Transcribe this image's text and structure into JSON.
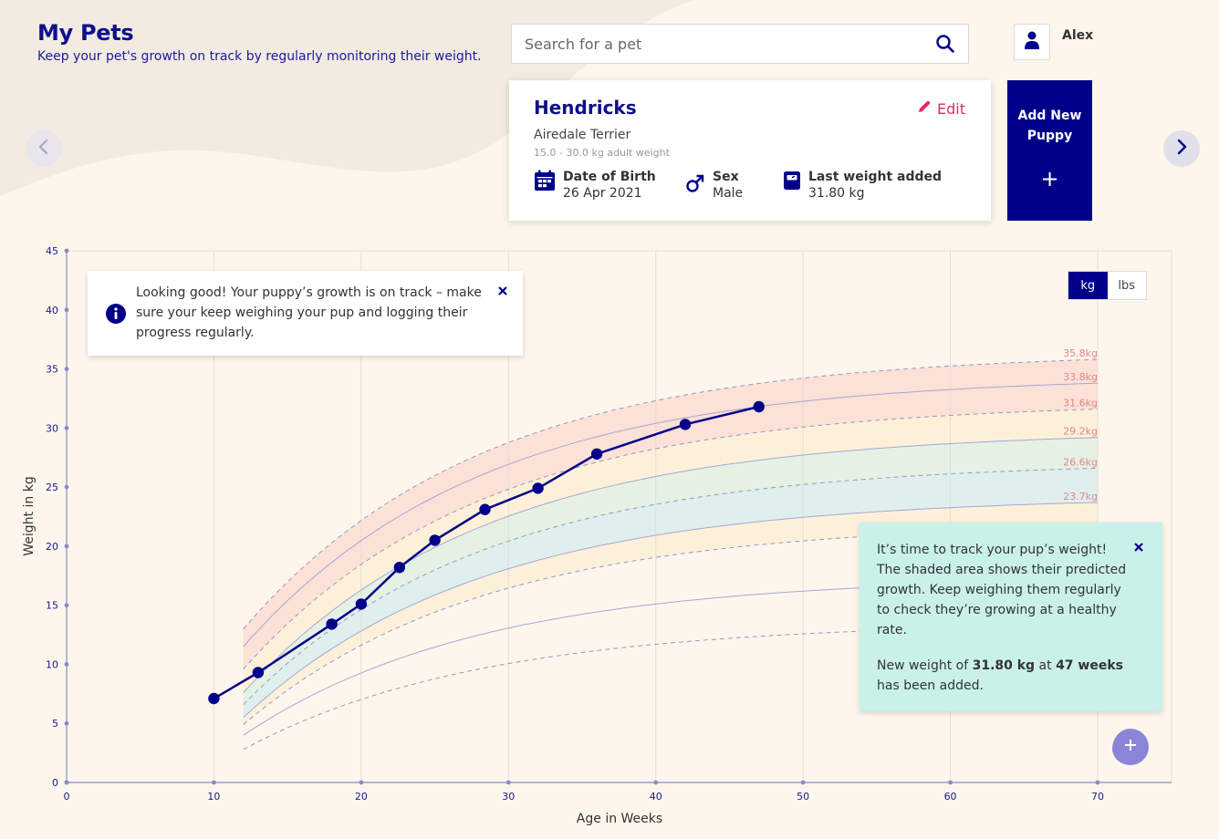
{
  "header": {
    "title": "My Pets",
    "subtitle": "Keep your pet's growth on track by regularly monitoring their weight."
  },
  "search": {
    "placeholder": "Search for a pet",
    "value": ""
  },
  "user": {
    "name": "Alex"
  },
  "pet": {
    "name": "Hendricks",
    "edit_label": "Edit",
    "breed": "Airedale Terrier",
    "adult_range": "15.0 - 30.0 kg adult weight",
    "dob_label": "Date of Birth",
    "dob_value": "26 Apr 2021",
    "sex_label": "Sex",
    "sex_value": "Male",
    "last_weight_label": "Last weight added",
    "last_weight_value": "31.80 kg"
  },
  "add_puppy": {
    "label_line1": "Add New",
    "label_line2": "Puppy",
    "plus": "+"
  },
  "tip_good": {
    "text": "Looking good! Your puppy’s growth is on track – make sure your keep weighing your pup and logging their progress regularly."
  },
  "units": {
    "kg": "kg",
    "lbs": "lbs",
    "selected": "kg"
  },
  "tip_track": {
    "text": "It’s time to track your pup’s weight! The shaded area shows their predicted growth. Keep weighing them regularly to check they’re growing at a healthy rate.",
    "added_prefix": "New weight of ",
    "added_weight": "31.80 kg",
    "added_mid": " at ",
    "added_age": "47 weeks",
    "added_suffix": "has been added."
  },
  "icons": {
    "search": "search-icon",
    "user": "user-icon",
    "edit": "pencil-icon",
    "calendar": "calendar-icon",
    "sex": "male-icon",
    "scale": "scale-icon",
    "prev": "chevron-left-icon",
    "next": "chevron-right-icon",
    "info": "info-icon",
    "close": "close-icon",
    "fab": "plus-icon"
  },
  "colors": {
    "brand": "#00008b",
    "title": "#0f0f8c",
    "edit": "#e8275f",
    "line": "#00008b",
    "band_red": "#fbd9cf",
    "band_yellow": "#fbefd2",
    "band_green": "#dcefe0",
    "band_blue": "#d3ecee",
    "tip_teal": "#c9f1ea"
  },
  "chart_data": {
    "type": "line",
    "xlabel": "Age in Weeks",
    "ylabel": "Weight in kg",
    "xlim": [
      0,
      70
    ],
    "ylim": [
      0,
      45
    ],
    "x_ticks": [
      0,
      10,
      20,
      30,
      40,
      50,
      60,
      70
    ],
    "y_ticks": [
      0,
      5,
      10,
      15,
      20,
      25,
      30,
      35,
      40,
      45
    ],
    "grid": true,
    "percentile_labels": [
      {
        "value": 35.8,
        "label": "35.8kg"
      },
      {
        "value": 33.8,
        "label": "33.8kg"
      },
      {
        "value": 31.6,
        "label": "31.6kg"
      },
      {
        "value": 29.2,
        "label": "29.2kg"
      },
      {
        "value": 26.6,
        "label": "26.6kg"
      },
      {
        "value": 23.7,
        "label": "23.7kg"
      }
    ],
    "growth_curves": {
      "x_start": 12,
      "x_end": 70,
      "start_values": [
        13.0,
        11.5,
        9.6,
        7.6,
        6.6,
        5.5,
        4.9,
        4.0,
        2.8
      ],
      "end_values": [
        35.8,
        33.8,
        31.6,
        29.2,
        26.6,
        23.7,
        21.6,
        17.1,
        13.3
      ],
      "dashed": [
        true,
        false,
        true,
        false,
        true,
        false,
        true,
        false,
        true
      ]
    },
    "series": [
      {
        "x": [
          10,
          13,
          18,
          20,
          22.6,
          25,
          28.4,
          32,
          36,
          42,
          47
        ],
        "y": [
          7.1,
          9.3,
          13.4,
          15.1,
          18.2,
          20.5,
          23.1,
          24.9,
          27.8,
          30.3,
          31.8
        ]
      }
    ]
  }
}
